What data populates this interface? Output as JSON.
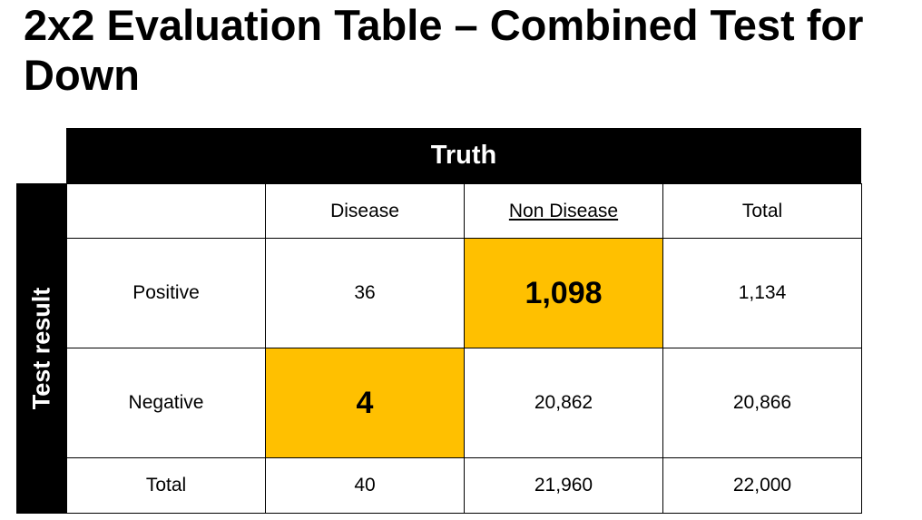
{
  "title": "2x2 Evaluation Table – Combined Test for Down",
  "truth_label": "Truth",
  "test_result_label": "Test result",
  "headers": {
    "disease": "Disease",
    "non_disease": "Non Disease",
    "total": "Total"
  },
  "rows": {
    "positive": {
      "label": "Positive",
      "disease": "36",
      "non_disease": "1,098",
      "total": "1,134"
    },
    "negative": {
      "label": "Negative",
      "disease": "4",
      "non_disease": "20,862",
      "total": "20,866"
    },
    "total": {
      "label": "Total",
      "disease": "40",
      "non_disease": "21,960",
      "total": "22,000"
    }
  },
  "colors": {
    "highlight": "#FFC000",
    "header_bg": "#000000"
  }
}
